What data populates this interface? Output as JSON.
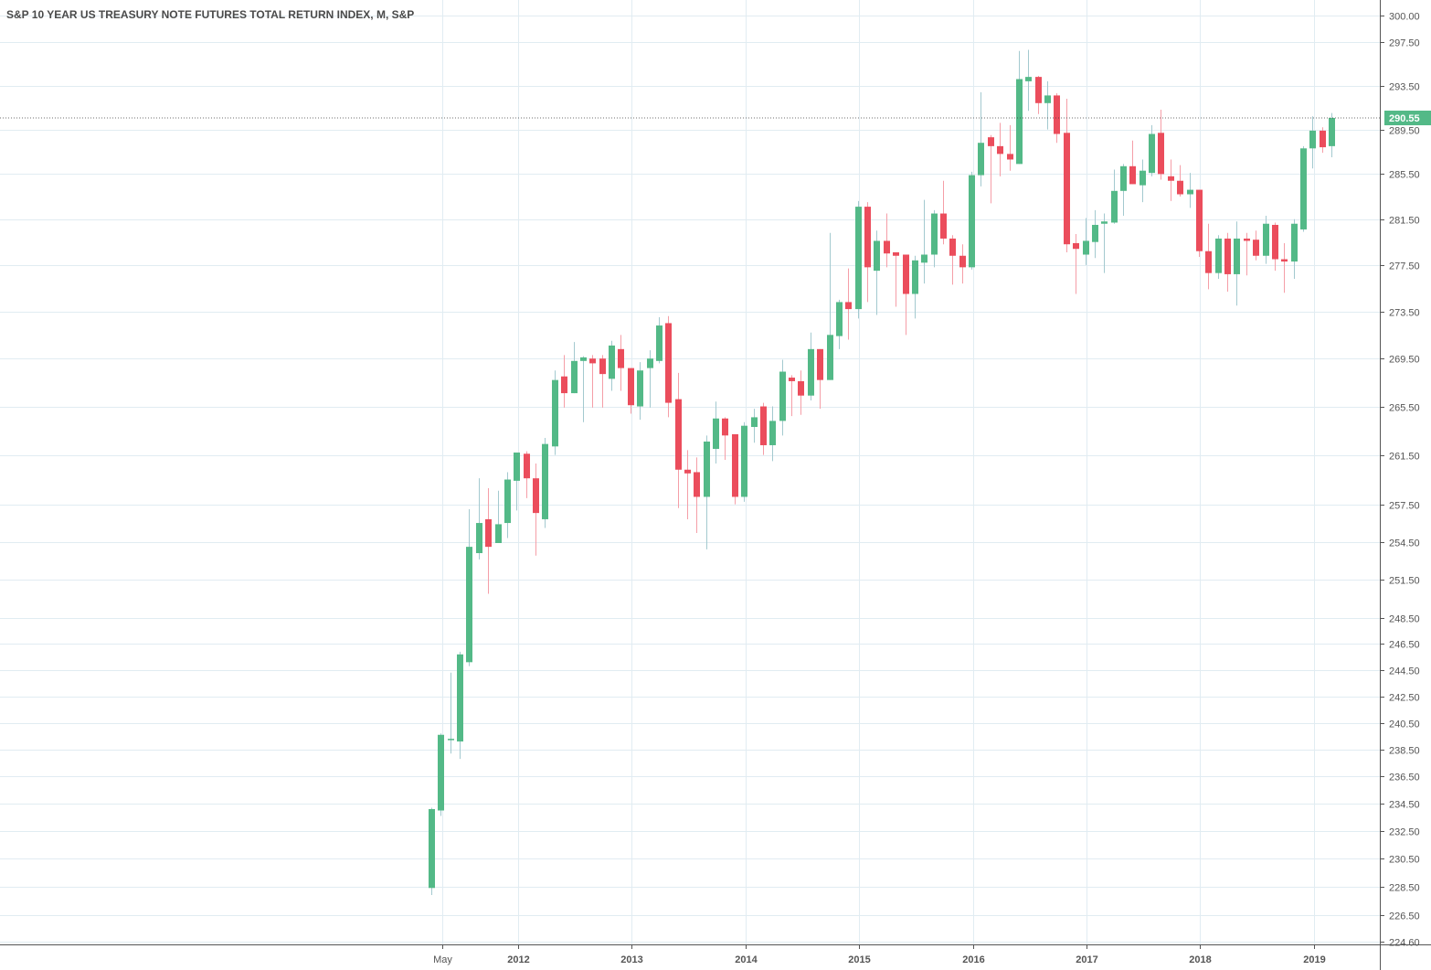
{
  "chart_data": {
    "type": "candlestick",
    "title": "S&P 10 YEAR US TREASURY NOTE FUTURES TOTAL RETURN INDEX, M, S&P",
    "interval": "monthly",
    "y_scale": "log",
    "ylim": [
      224.6,
      300.0
    ],
    "last_price": 290.55,
    "last_price_label": "290.55",
    "colors": {
      "up": "#53b987",
      "down": "#eb4d5c",
      "up_wick": "#a3c9cf",
      "down_wick": "#f59ea7",
      "grid": "#e1ecf2",
      "axis": "#555555",
      "text": "#4a4a4a"
    },
    "y_ticks": [
      "300.00",
      "297.50",
      "293.50",
      "289.50",
      "285.50",
      "281.50",
      "277.50",
      "273.50",
      "269.50",
      "265.50",
      "261.50",
      "257.50",
      "254.50",
      "251.50",
      "248.50",
      "246.50",
      "244.50",
      "242.50",
      "240.50",
      "238.50",
      "236.50",
      "234.50",
      "232.50",
      "230.50",
      "228.50",
      "226.50",
      "224.60"
    ],
    "x_ticks": [
      {
        "label": "May",
        "month_index": 1
      },
      {
        "label": "2012",
        "month_index": 9
      },
      {
        "label": "2013",
        "month_index": 21
      },
      {
        "label": "2014",
        "month_index": 33
      },
      {
        "label": "2015",
        "month_index": 45
      },
      {
        "label": "2016",
        "month_index": 57
      },
      {
        "label": "2017",
        "month_index": 69
      },
      {
        "label": "2018",
        "month_index": 81
      },
      {
        "label": "2019",
        "month_index": 93
      }
    ],
    "first_month": "2011-04",
    "ohlc": [
      [
        228.4,
        234.2,
        227.9,
        234.1
      ],
      [
        234.0,
        239.7,
        233.6,
        239.6
      ],
      [
        239.2,
        244.3,
        238.2,
        239.3
      ],
      [
        239.1,
        245.9,
        237.8,
        245.7
      ],
      [
        245.1,
        257.1,
        244.8,
        254.1
      ],
      [
        253.6,
        259.6,
        253.1,
        256.0
      ],
      [
        256.3,
        258.8,
        250.4,
        254.1
      ],
      [
        254.4,
        258.6,
        254.4,
        255.9
      ],
      [
        256.0,
        260.1,
        254.8,
        259.5
      ],
      [
        259.4,
        261.7,
        257.0,
        261.7
      ],
      [
        261.6,
        261.8,
        258.0,
        259.6
      ],
      [
        259.6,
        260.8,
        253.4,
        256.8
      ],
      [
        256.3,
        262.9,
        255.6,
        262.4
      ],
      [
        262.2,
        268.5,
        261.5,
        267.7
      ],
      [
        268.0,
        269.8,
        265.4,
        266.6
      ],
      [
        266.6,
        270.9,
        266.6,
        269.3
      ],
      [
        269.3,
        269.7,
        264.2,
        269.6
      ],
      [
        269.5,
        269.8,
        265.4,
        269.1
      ],
      [
        269.5,
        269.8,
        265.4,
        268.2
      ],
      [
        267.8,
        271.0,
        266.8,
        270.6
      ],
      [
        270.3,
        271.5,
        266.8,
        268.7
      ],
      [
        268.7,
        268.7,
        264.9,
        265.6
      ],
      [
        265.5,
        269.2,
        264.4,
        268.5
      ],
      [
        268.7,
        270.2,
        265.4,
        269.5
      ],
      [
        269.3,
        273.0,
        269.1,
        272.3
      ],
      [
        272.5,
        273.1,
        264.6,
        265.8
      ],
      [
        266.1,
        268.3,
        257.2,
        260.3
      ],
      [
        260.3,
        261.9,
        256.3,
        260.0
      ],
      [
        260.1,
        261.3,
        255.2,
        258.1
      ],
      [
        258.1,
        263.1,
        253.9,
        262.6
      ],
      [
        262.0,
        265.9,
        260.8,
        264.5
      ],
      [
        264.5,
        264.6,
        261.1,
        263.1
      ],
      [
        263.2,
        263.2,
        257.5,
        258.1
      ],
      [
        258.1,
        264.2,
        257.7,
        263.9
      ],
      [
        263.8,
        265.3,
        262.5,
        264.6
      ],
      [
        265.5,
        265.8,
        261.5,
        262.3
      ],
      [
        262.3,
        265.5,
        261.0,
        264.3
      ],
      [
        264.3,
        269.4,
        263.1,
        268.4
      ],
      [
        267.9,
        268.1,
        264.7,
        267.6
      ],
      [
        267.6,
        268.5,
        264.8,
        266.4
      ],
      [
        266.4,
        271.7,
        266.0,
        270.3
      ],
      [
        270.3,
        270.3,
        265.3,
        267.7
      ],
      [
        267.7,
        280.3,
        267.7,
        271.5
      ],
      [
        271.4,
        274.5,
        270.3,
        274.3
      ],
      [
        274.3,
        277.2,
        271.1,
        273.7
      ],
      [
        273.7,
        283.1,
        272.9,
        282.6
      ],
      [
        282.6,
        283.0,
        274.3,
        277.3
      ],
      [
        277.0,
        280.5,
        273.2,
        279.6
      ],
      [
        279.6,
        282.0,
        277.3,
        278.5
      ],
      [
        278.6,
        278.6,
        273.9,
        278.3
      ],
      [
        278.4,
        278.4,
        271.5,
        275.0
      ],
      [
        275.0,
        278.3,
        272.9,
        277.9
      ],
      [
        277.7,
        283.2,
        275.9,
        278.4
      ],
      [
        278.4,
        282.3,
        277.3,
        282.0
      ],
      [
        282.0,
        284.9,
        279.3,
        279.8
      ],
      [
        279.8,
        280.1,
        275.8,
        278.3
      ],
      [
        278.3,
        279.3,
        275.9,
        277.3
      ],
      [
        277.3,
        285.7,
        277.1,
        285.4
      ],
      [
        285.4,
        292.9,
        284.4,
        288.3
      ],
      [
        288.8,
        289.0,
        282.9,
        288.0
      ],
      [
        288.0,
        290.1,
        285.3,
        287.3
      ],
      [
        287.3,
        289.9,
        285.8,
        286.8
      ],
      [
        286.4,
        296.7,
        286.4,
        294.1
      ],
      [
        293.9,
        296.8,
        291.2,
        294.3
      ],
      [
        294.3,
        294.4,
        290.9,
        291.9
      ],
      [
        291.9,
        293.9,
        289.5,
        292.6
      ],
      [
        292.6,
        292.8,
        288.3,
        289.1
      ],
      [
        289.2,
        292.3,
        278.6,
        279.3
      ],
      [
        279.4,
        280.2,
        275.0,
        278.9
      ],
      [
        278.4,
        281.6,
        277.5,
        279.6
      ],
      [
        279.5,
        282.3,
        278.1,
        281.0
      ],
      [
        281.1,
        282.0,
        276.8,
        281.3
      ],
      [
        281.2,
        285.9,
        281.1,
        284.0
      ],
      [
        284.0,
        286.4,
        281.8,
        286.2
      ],
      [
        286.2,
        288.5,
        284.6,
        284.6
      ],
      [
        284.5,
        286.8,
        283.0,
        285.8
      ],
      [
        285.6,
        289.9,
        285.3,
        289.1
      ],
      [
        289.2,
        291.3,
        285.0,
        285.5
      ],
      [
        285.3,
        286.8,
        283.1,
        284.9
      ],
      [
        284.9,
        286.3,
        283.5,
        283.7
      ],
      [
        283.7,
        285.6,
        282.5,
        284.1
      ],
      [
        284.1,
        284.1,
        278.2,
        278.7
      ],
      [
        278.7,
        281.1,
        275.4,
        276.8
      ],
      [
        276.8,
        280.1,
        276.3,
        279.8
      ],
      [
        279.8,
        280.3,
        275.2,
        276.7
      ],
      [
        276.7,
        281.3,
        274.0,
        279.8
      ],
      [
        279.8,
        280.3,
        276.6,
        279.6
      ],
      [
        279.7,
        280.5,
        277.9,
        278.3
      ],
      [
        278.3,
        281.8,
        277.6,
        281.1
      ],
      [
        281.0,
        281.2,
        277.0,
        278.0
      ],
      [
        278.0,
        279.4,
        275.1,
        277.8
      ],
      [
        277.8,
        281.5,
        276.3,
        281.1
      ],
      [
        280.6,
        288.0,
        280.4,
        287.8
      ],
      [
        287.8,
        290.7,
        286.0,
        289.4
      ],
      [
        289.4,
        289.7,
        287.4,
        287.9
      ],
      [
        288.0,
        291.0,
        287.0,
        290.55
      ]
    ]
  }
}
